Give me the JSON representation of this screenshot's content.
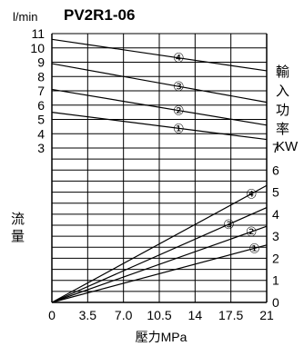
{
  "chart_data": {
    "type": "line",
    "title": "PV2R1-06",
    "y_unit_label": "l/min",
    "xlabel": "壓力MPa",
    "ylabel_left": [
      "流",
      "量"
    ],
    "ylabel_right_chars": [
      "輸",
      "入",
      "功",
      "率"
    ],
    "ylabel_right_unit": "KW",
    "x_ticks": [
      "0",
      "3.5",
      "7.0",
      "10.5",
      "14",
      "17.5",
      "21"
    ],
    "x_range": [
      0,
      21
    ],
    "left_ticks": [
      "3",
      "4",
      "5",
      "6",
      "7",
      "8",
      "9",
      "10",
      "11"
    ],
    "right_ticks": [
      "0",
      "1",
      "2",
      "3",
      "4",
      "5",
      "6",
      "7"
    ],
    "flow_axis": {
      "range": [
        3,
        11
      ],
      "grid_step": 1
    },
    "power_axis": {
      "range": [
        0,
        7
      ],
      "grid_step": 0.5
    },
    "grid": true,
    "flow_series": [
      {
        "name": "④",
        "x": [
          0,
          21
        ],
        "y": [
          10.6,
          8.4
        ]
      },
      {
        "name": "③",
        "x": [
          0,
          21
        ],
        "y": [
          8.9,
          6.2
        ]
      },
      {
        "name": "②",
        "x": [
          0,
          21
        ],
        "y": [
          7.1,
          4.6
        ]
      },
      {
        "name": "①",
        "x": [
          0,
          21
        ],
        "y": [
          5.5,
          3.6
        ]
      }
    ],
    "power_series": [
      {
        "name": "④",
        "x": [
          0,
          21
        ],
        "y": [
          0,
          5.3
        ]
      },
      {
        "name": "③",
        "x": [
          0,
          21
        ],
        "y": [
          0,
          4.3
        ]
      },
      {
        "name": "②",
        "x": [
          0,
          21
        ],
        "y": [
          0,
          3.45
        ]
      },
      {
        "name": "①",
        "x": [
          0,
          21
        ],
        "y": [
          0,
          2.6
        ]
      }
    ]
  }
}
